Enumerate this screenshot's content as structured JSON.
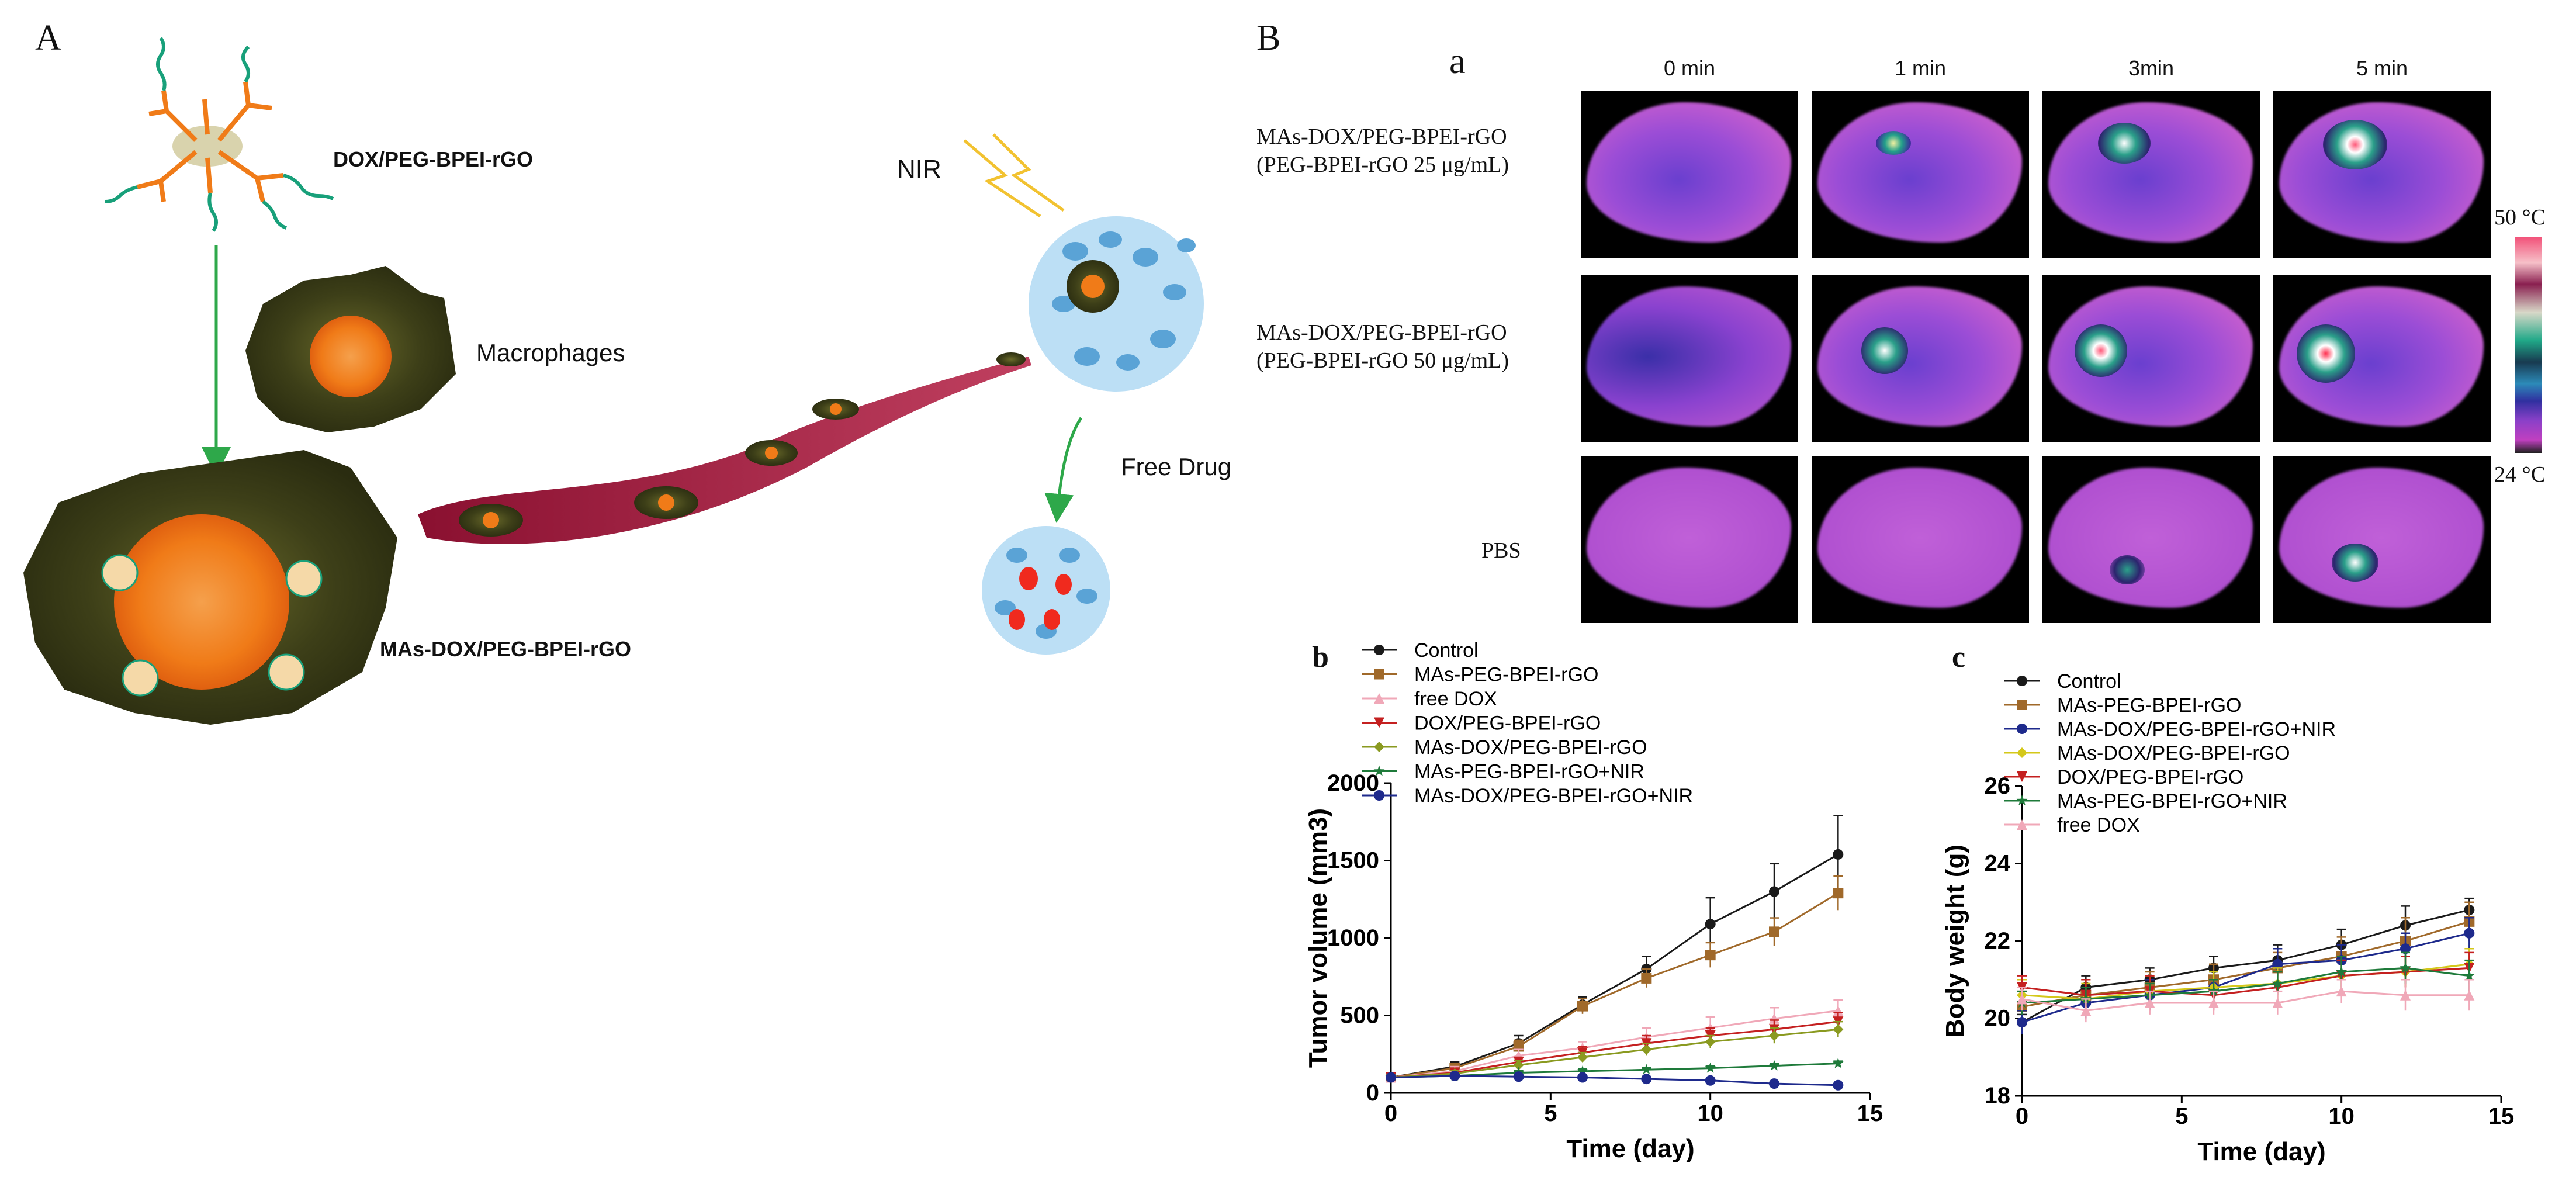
{
  "panel_A": {
    "letter": "A",
    "labels": {
      "dox_peg": "DOX/PEG-BPEI-rGO",
      "macrophages": "Macrophages",
      "mas_dox": "MAs-DOX/PEG-BPEI-rGO",
      "nir": "NIR",
      "free_drug": "Free Drug"
    }
  },
  "panel_B": {
    "letter": "B",
    "sub_a": "a",
    "time_headers": [
      "0 min",
      "1 min",
      "3min",
      "5 min"
    ],
    "row_labels": [
      {
        "line1": "MAs-DOX/PEG-BPEI-rGO",
        "line2": "(PEG-BPEI-rGO 25 μg/mL)"
      },
      {
        "line1": "MAs-DOX/PEG-BPEI-rGO",
        "line2": "(PEG-BPEI-rGO 50 μg/mL)"
      },
      {
        "line1": "PBS",
        "line2": ""
      }
    ],
    "scale_max": "50 °C",
    "scale_min": "24 °C"
  },
  "chart_data": [
    {
      "panel": "b",
      "type": "line",
      "xlabel": "Time (day)",
      "ylabel": "Tumor volume (mm3)",
      "xlim": [
        0,
        15
      ],
      "ylim": [
        0,
        2000
      ],
      "xticks": [
        0,
        5,
        10,
        15
      ],
      "yticks": [
        0,
        500,
        1000,
        1500,
        2000
      ],
      "x": [
        0,
        2,
        4,
        6,
        8,
        10,
        12,
        14
      ],
      "legend_position": "top-left",
      "series": [
        {
          "name": "Control",
          "color": "#1a1a1a",
          "marker": "circle",
          "values": [
            100,
            170,
            320,
            570,
            800,
            1090,
            1300,
            1540
          ],
          "err": [
            30,
            30,
            50,
            50,
            80,
            170,
            180,
            250
          ]
        },
        {
          "name": "MAs-PEG-BPEI-rGO",
          "color": "#a0692a",
          "marker": "square",
          "values": [
            100,
            160,
            300,
            560,
            740,
            890,
            1040,
            1290
          ],
          "err": [
            20,
            30,
            40,
            50,
            60,
            80,
            90,
            110
          ]
        },
        {
          "name": "free DOX",
          "color": "#f0a8b8",
          "marker": "triangle-up",
          "values": [
            100,
            140,
            240,
            290,
            360,
            420,
            480,
            530
          ],
          "err": [
            20,
            30,
            40,
            40,
            60,
            70,
            70,
            70
          ]
        },
        {
          "name": "DOX/PEG-BPEI-rGO",
          "color": "#c42020",
          "marker": "triangle-down",
          "values": [
            100,
            130,
            200,
            260,
            320,
            370,
            410,
            460
          ],
          "err": [
            20,
            20,
            30,
            40,
            50,
            50,
            60,
            60
          ]
        },
        {
          "name": "MAs-DOX/PEG-BPEI-rGO",
          "color": "#8a9a20",
          "marker": "diamond",
          "values": [
            100,
            125,
            180,
            230,
            280,
            330,
            370,
            410
          ],
          "err": [
            20,
            20,
            30,
            30,
            40,
            40,
            50,
            50
          ]
        },
        {
          "name": "MAs-PEG-BPEI-rGO+NIR",
          "color": "#1e7a3a",
          "marker": "star",
          "values": [
            100,
            110,
            130,
            140,
            150,
            160,
            175,
            190
          ],
          "err": [
            10,
            10,
            15,
            15,
            15,
            15,
            15,
            15
          ]
        },
        {
          "name": "MAs-DOX/PEG-BPEI-rGO+NIR",
          "color": "#1e2a8c",
          "marker": "circle",
          "values": [
            100,
            110,
            105,
            100,
            90,
            80,
            60,
            50
          ],
          "err": [
            10,
            10,
            10,
            10,
            10,
            10,
            10,
            10
          ]
        }
      ]
    },
    {
      "panel": "c",
      "type": "line",
      "xlabel": "Time (day)",
      "ylabel": "Body weight (g)",
      "xlim": [
        0,
        15
      ],
      "ylim": [
        18,
        26
      ],
      "xticks": [
        0,
        5,
        10,
        15
      ],
      "yticks": [
        18,
        20,
        22,
        24,
        26
      ],
      "x": [
        0,
        2,
        4,
        6,
        8,
        10,
        12,
        14
      ],
      "legend_position": "top-left",
      "series": [
        {
          "name": "Control",
          "color": "#1a1a1a",
          "marker": "circle",
          "values": [
            19.9,
            20.8,
            21.0,
            21.3,
            21.5,
            21.9,
            22.4,
            22.8
          ],
          "err": [
            0.2,
            0.3,
            0.3,
            0.3,
            0.4,
            0.4,
            0.5,
            0.3
          ]
        },
        {
          "name": "MAs-PEG-BPEI-rGO",
          "color": "#a0692a",
          "marker": "square",
          "values": [
            20.3,
            20.6,
            20.8,
            21.0,
            21.3,
            21.6,
            22.0,
            22.5
          ],
          "err": [
            0.4,
            0.4,
            0.4,
            0.4,
            0.4,
            0.5,
            0.6,
            0.5
          ]
        },
        {
          "name": "MAs-DOX/PEG-BPEI-rGO+NIR",
          "color": "#1e2a8c",
          "marker": "circle",
          "values": [
            19.9,
            20.4,
            20.6,
            20.8,
            21.4,
            21.5,
            21.8,
            22.2
          ],
          "err": [
            0.3,
            0.4,
            0.4,
            0.4,
            0.4,
            0.4,
            0.4,
            0.4
          ]
        },
        {
          "name": "MAs-DOX/PEG-BPEI-rGO",
          "color": "#d4c81a",
          "marker": "diamond",
          "values": [
            20.6,
            20.5,
            20.7,
            20.8,
            20.9,
            21.1,
            21.2,
            21.4
          ],
          "err": [
            0.4,
            0.4,
            0.4,
            0.4,
            0.4,
            0.4,
            0.4,
            0.4
          ]
        },
        {
          "name": "DOX/PEG-BPEI-rGO",
          "color": "#c42020",
          "marker": "triangle-down",
          "values": [
            20.8,
            20.6,
            20.7,
            20.6,
            20.8,
            21.1,
            21.2,
            21.3
          ],
          "err": [
            0.3,
            0.4,
            0.4,
            0.4,
            0.4,
            0.4,
            0.4,
            0.4
          ]
        },
        {
          "name": "MAs-PEG-BPEI-rGO+NIR",
          "color": "#1e7a3a",
          "marker": "star",
          "values": [
            20.4,
            20.5,
            20.6,
            20.7,
            20.9,
            21.2,
            21.3,
            21.1
          ],
          "err": [
            0.3,
            0.3,
            0.3,
            0.3,
            0.3,
            0.4,
            0.4,
            0.4
          ]
        },
        {
          "name": "free DOX",
          "color": "#f0a8b8",
          "marker": "triangle-up",
          "values": [
            20.5,
            20.2,
            20.4,
            20.4,
            20.4,
            20.7,
            20.6,
            20.6
          ],
          "err": [
            0.3,
            0.3,
            0.3,
            0.3,
            0.3,
            0.3,
            0.4,
            0.4
          ]
        }
      ]
    }
  ]
}
